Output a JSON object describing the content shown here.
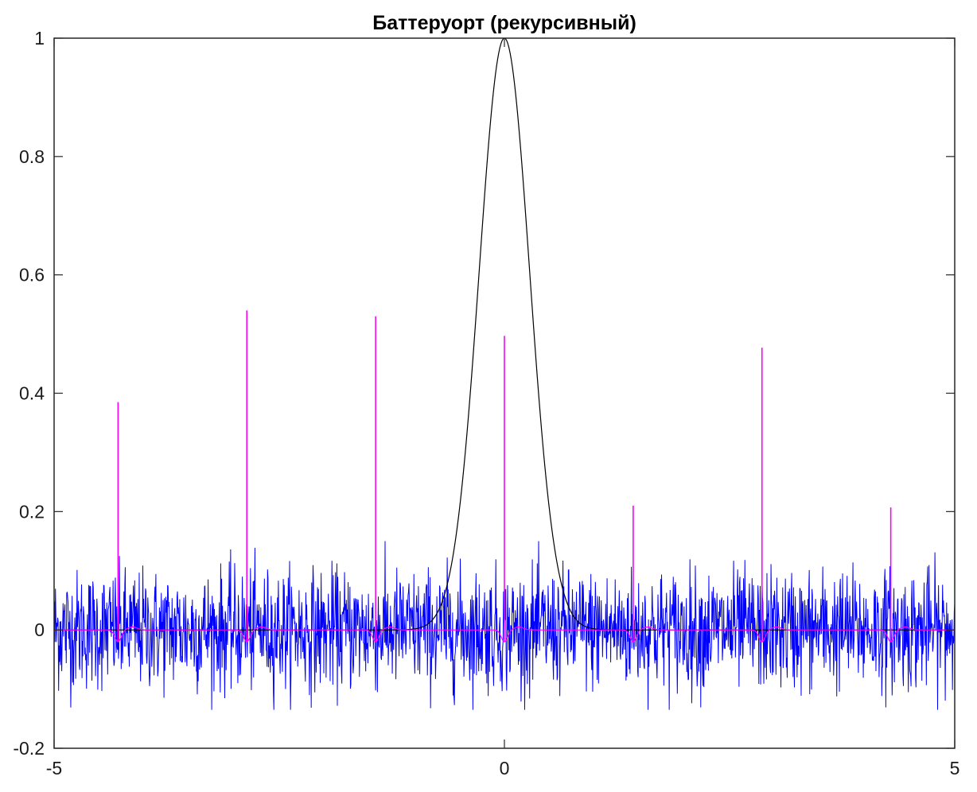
{
  "chart_data": {
    "type": "line",
    "title": "Баттеруорт (рекурсивный)",
    "xlabel": "",
    "ylabel": "",
    "xlim": [
      -5,
      5
    ],
    "ylim": [
      -0.2,
      1
    ],
    "x_ticks": [
      "-5",
      "0",
      "5"
    ],
    "y_ticks": [
      "-0.2",
      "0",
      "0.2",
      "0.4",
      "0.6",
      "0.8",
      "1"
    ],
    "grid": false,
    "legend": "none",
    "series": [
      {
        "color": "#0000ff",
        "description_values": "noisy signal, approx. uniform noise in [-0.13, 0.15] around 0 over x in [-5, 5]",
        "noise_sigma": 0.05
      },
      {
        "color": "#000000",
        "shape": "gaussian",
        "peak_x": 0,
        "peak_y": 1,
        "sigma": 0.28
      },
      {
        "color": "#ff00ff",
        "spikes": [
          {
            "x": -4.29,
            "y": 0.385
          },
          {
            "x": -2.86,
            "y": 0.54
          },
          {
            "x": -1.43,
            "y": 0.53
          },
          {
            "x": 0.0,
            "y": 0.497
          },
          {
            "x": 1.43,
            "y": 0.21
          },
          {
            "x": 2.86,
            "y": 0.477
          },
          {
            "x": 4.29,
            "y": 0.207
          }
        ],
        "dip": -0.02
      }
    ]
  }
}
